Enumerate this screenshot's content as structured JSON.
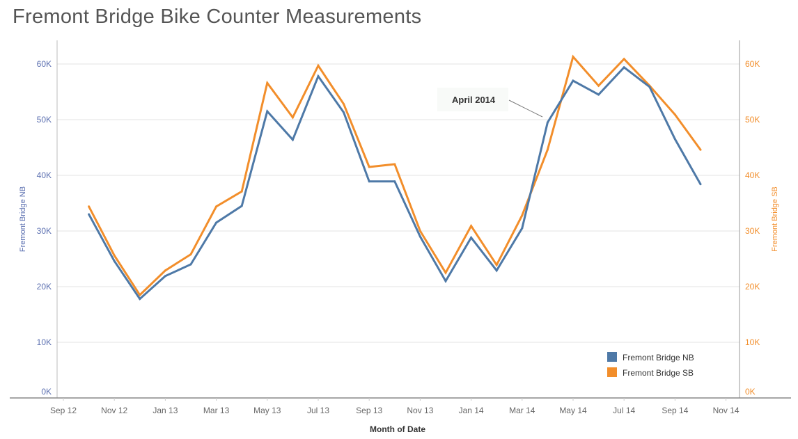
{
  "title": "Fremont Bridge Bike Counter Measurements",
  "chart_data": {
    "type": "line",
    "title": "Fremont Bridge Bike Counter Measurements",
    "xlabel": "Month of Date",
    "ylabel_left": "Fremont Bridge NB",
    "ylabel_right": "Fremont Bridge SB",
    "ylim": [
      0,
      64000
    ],
    "y_ticks": [
      "0K",
      "10K",
      "20K",
      "30K",
      "40K",
      "50K",
      "60K"
    ],
    "y_tick_values": [
      0,
      10000,
      20000,
      30000,
      40000,
      50000,
      60000
    ],
    "x_ticks": [
      "Sep 12",
      "Nov 12",
      "Jan 13",
      "Mar 13",
      "May 13",
      "Jul 13",
      "Sep 13",
      "Nov 13",
      "Jan 14",
      "Mar 14",
      "May 14",
      "Jul 14",
      "Sep 14",
      "Nov 14"
    ],
    "x_tick_dates": [
      "2012-09",
      "2012-11",
      "2013-01",
      "2013-03",
      "2013-05",
      "2013-07",
      "2013-09",
      "2013-11",
      "2014-01",
      "2014-03",
      "2014-05",
      "2014-07",
      "2014-09",
      "2014-11"
    ],
    "x": [
      "2012-10",
      "2012-11",
      "2012-12",
      "2013-01",
      "2013-02",
      "2013-03",
      "2013-04",
      "2013-05",
      "2013-06",
      "2013-07",
      "2013-08",
      "2013-09",
      "2013-10",
      "2013-11",
      "2013-12",
      "2014-01",
      "2014-02",
      "2014-03",
      "2014-04",
      "2014-05",
      "2014-06",
      "2014-07",
      "2014-08",
      "2014-09",
      "2014-10"
    ],
    "grid": true,
    "legend_position": "bottom-right",
    "series": [
      {
        "name": "Fremont Bridge NB",
        "color": "#4e79a7",
        "axis": "left",
        "values": [
          33000,
          24600,
          17800,
          21900,
          24000,
          31500,
          34500,
          51500,
          46400,
          57800,
          51300,
          38900,
          38900,
          29000,
          21000,
          28800,
          22900,
          30500,
          49500,
          57000,
          54500,
          59400,
          55900,
          46500,
          38400
        ]
      },
      {
        "name": "Fremont Bridge SB",
        "color": "#f28e2b",
        "axis": "right",
        "values": [
          34400,
          25600,
          18500,
          22900,
          25800,
          34400,
          37100,
          56600,
          50400,
          59700,
          52800,
          41500,
          42000,
          30000,
          22500,
          30900,
          23900,
          32800,
          44600,
          61300,
          56100,
          60900,
          56100,
          50900,
          44600
        ]
      }
    ],
    "annotations": [
      {
        "text": "April 2014",
        "x": "2014-04",
        "series": "Fremont Bridge NB"
      }
    ]
  }
}
